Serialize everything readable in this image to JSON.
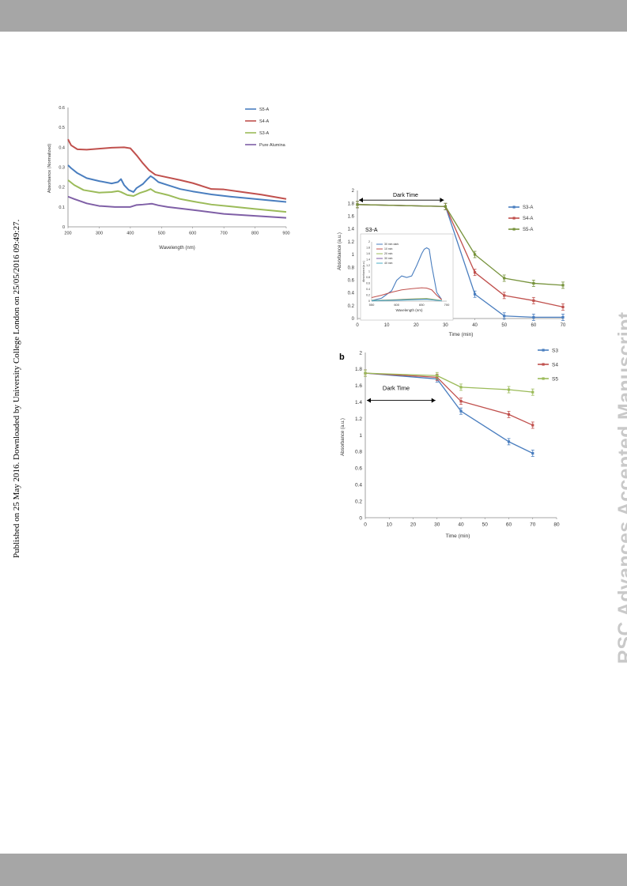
{
  "page": {
    "side_note": "Published on 25 May 2016. Downloaded by University College London on 25/05/2016 09:49:27.",
    "watermark": "RSC Advances Accepted Manuscript",
    "colors": {
      "band": "#a6a6a6",
      "watermark": "#c9c9c9"
    }
  },
  "chart_data": [
    {
      "type": "line",
      "xlabel": "Wavelength (nm)",
      "ylabel": "Absorbance (Normalized)",
      "xlim": [
        200,
        900
      ],
      "ylim": [
        0,
        0.6
      ],
      "xticks": [
        200,
        300,
        400,
        500,
        600,
        700,
        800,
        900
      ],
      "yticks": [
        0,
        0.1,
        0.2,
        0.3,
        0.4,
        0.5,
        0.6
      ],
      "legend_position": "top-right",
      "series": [
        {
          "name": "S5-A",
          "color": "#4a7ebf",
          "x": [
            200,
            210,
            230,
            260,
            300,
            340,
            360,
            370,
            380,
            395,
            410,
            420,
            440,
            455,
            465,
            475,
            490,
            520,
            560,
            600,
            660,
            720,
            800,
            900
          ],
          "y": [
            0.31,
            0.295,
            0.27,
            0.245,
            0.23,
            0.218,
            0.225,
            0.24,
            0.21,
            0.185,
            0.175,
            0.195,
            0.215,
            0.24,
            0.255,
            0.245,
            0.225,
            0.21,
            0.19,
            0.178,
            0.163,
            0.152,
            0.14,
            0.125
          ]
        },
        {
          "name": "S4-A",
          "color": "#c0504d",
          "x": [
            200,
            210,
            230,
            260,
            300,
            340,
            380,
            400,
            420,
            440,
            460,
            480,
            500,
            560,
            600,
            660,
            700,
            760,
            820,
            900
          ],
          "y": [
            0.44,
            0.41,
            0.39,
            0.388,
            0.393,
            0.398,
            0.4,
            0.395,
            0.36,
            0.32,
            0.285,
            0.262,
            0.255,
            0.235,
            0.22,
            0.19,
            0.188,
            0.175,
            0.162,
            0.14
          ]
        },
        {
          "name": "S3-A",
          "color": "#9bbb59",
          "x": [
            200,
            220,
            250,
            300,
            340,
            360,
            370,
            390,
            410,
            430,
            450,
            465,
            480,
            520,
            560,
            600,
            660,
            720,
            800,
            900
          ],
          "y": [
            0.235,
            0.21,
            0.185,
            0.172,
            0.175,
            0.18,
            0.175,
            0.16,
            0.155,
            0.17,
            0.18,
            0.19,
            0.175,
            0.16,
            0.14,
            0.128,
            0.112,
            0.103,
            0.09,
            0.075
          ]
        },
        {
          "name": "Pure Alumina",
          "color": "#7f5fa6",
          "x": [
            200,
            220,
            260,
            300,
            350,
            400,
            420,
            440,
            460,
            470,
            490,
            520,
            600,
            700,
            800,
            900
          ],
          "y": [
            0.152,
            0.14,
            0.118,
            0.105,
            0.1,
            0.1,
            0.11,
            0.112,
            0.115,
            0.116,
            0.108,
            0.1,
            0.085,
            0.065,
            0.055,
            0.045
          ]
        }
      ]
    },
    {
      "type": "line",
      "xlabel": "Time (min)",
      "ylabel": "Absorbance (a.u.)",
      "xlim": [
        0,
        70
      ],
      "ylim": [
        0,
        2
      ],
      "xticks": [
        0,
        10,
        20,
        30,
        40,
        50,
        60,
        70
      ],
      "yticks": [
        0,
        0.2,
        0.4,
        0.6,
        0.8,
        1,
        1.2,
        1.4,
        1.6,
        1.8,
        2
      ],
      "annotation": "Dark Time",
      "annotation_span": [
        0,
        30
      ],
      "legend_position": "top-right",
      "series": [
        {
          "name": "S3-A",
          "color": "#4a7ebf",
          "x": [
            0,
            30,
            40,
            50,
            60,
            70
          ],
          "y": [
            1.78,
            1.75,
            0.38,
            0.04,
            0.02,
            0.02
          ]
        },
        {
          "name": "S4-A",
          "color": "#c0504d",
          "x": [
            0,
            30,
            40,
            50,
            60,
            70
          ],
          "y": [
            1.78,
            1.75,
            0.72,
            0.36,
            0.28,
            0.18
          ]
        },
        {
          "name": "S5-A",
          "color": "#77933c",
          "x": [
            0,
            30,
            40,
            50,
            60,
            70
          ],
          "y": [
            1.78,
            1.75,
            1.0,
            0.63,
            0.55,
            0.52
          ]
        }
      ],
      "inset": {
        "type": "line",
        "title": "S3-A",
        "xlabel": "Wavelength (nm)",
        "ylabel": "Absorbance(a.u.)",
        "xlim": [
          550,
          700
        ],
        "ylim": [
          0,
          2
        ],
        "xticks": [
          550,
          600,
          650,
          700
        ],
        "yticks": [
          0,
          0.2,
          0.4,
          0.6,
          0.8,
          1,
          1.2,
          1.4,
          1.6,
          1.8,
          2
        ],
        "legend_position": "top-left",
        "series": [
          {
            "name": "30 min dark",
            "color": "#4a7ebf",
            "x": [
              550,
              570,
              590,
              600,
              610,
              620,
              630,
              640,
              650,
              655,
              660,
              665,
              670,
              680,
              690
            ],
            "y": [
              0.02,
              0.1,
              0.35,
              0.7,
              0.85,
              0.8,
              0.85,
              1.2,
              1.6,
              1.75,
              1.8,
              1.75,
              1.2,
              0.3,
              0.05
            ]
          },
          {
            "name": "10 min",
            "color": "#c0504d",
            "x": [
              550,
              570,
              590,
              610,
              630,
              650,
              660,
              670,
              680,
              690
            ],
            "y": [
              0.12,
              0.2,
              0.3,
              0.38,
              0.42,
              0.45,
              0.44,
              0.38,
              0.2,
              0.05
            ]
          },
          {
            "name": "20 min",
            "color": "#9bbb59",
            "x": [
              550,
              600,
              640,
              660,
              690
            ],
            "y": [
              0.02,
              0.05,
              0.08,
              0.09,
              0.02
            ]
          },
          {
            "name": "30 min",
            "color": "#7f5fa6",
            "x": [
              550,
              600,
              640,
              660,
              690
            ],
            "y": [
              0.01,
              0.04,
              0.06,
              0.07,
              0.01
            ]
          },
          {
            "name": "40 min",
            "color": "#4bacc6",
            "x": [
              550,
              600,
              640,
              660,
              690
            ],
            "y": [
              0.01,
              0.03,
              0.05,
              0.06,
              0.01
            ]
          }
        ]
      }
    },
    {
      "type": "line",
      "panel_label": "b",
      "xlabel": "Time (min)",
      "ylabel": "Absorbance (a.u.)",
      "xlim": [
        0,
        80
      ],
      "ylim": [
        0,
        2
      ],
      "xticks": [
        0,
        10,
        20,
        30,
        40,
        50,
        60,
        70,
        80
      ],
      "yticks": [
        0,
        0.2,
        0.4,
        0.6,
        0.8,
        1,
        1.2,
        1.4,
        1.6,
        1.8,
        2
      ],
      "annotation": "Dark Time",
      "annotation_span": [
        0,
        30
      ],
      "legend_position": "top-right",
      "series": [
        {
          "name": "S3",
          "color": "#4a7ebf",
          "x": [
            0,
            30,
            40,
            60,
            70
          ],
          "y": [
            1.75,
            1.68,
            1.29,
            0.92,
            0.78
          ]
        },
        {
          "name": "S4",
          "color": "#c0504d",
          "x": [
            0,
            30,
            40,
            60,
            70
          ],
          "y": [
            1.75,
            1.7,
            1.41,
            1.25,
            1.12
          ]
        },
        {
          "name": "S5",
          "color": "#9bbb59",
          "x": [
            0,
            30,
            40,
            60,
            70
          ],
          "y": [
            1.75,
            1.72,
            1.58,
            1.55,
            1.52
          ]
        }
      ]
    }
  ]
}
